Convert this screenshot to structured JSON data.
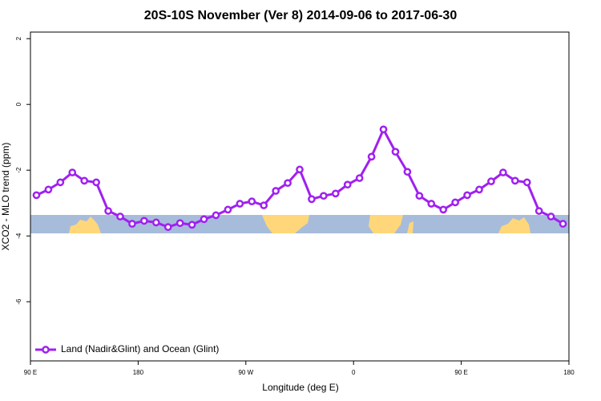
{
  "chart_data": {
    "type": "line",
    "title": "20S-10S November (Ver 8)   2014-09-06 to 2017-06-30",
    "x_label": "Longitude (deg E)",
    "y_label": "XCO2 - MLO trend (ppm)",
    "x": [
      95,
      105,
      115,
      125,
      135,
      145,
      155,
      165,
      175,
      185,
      195,
      205,
      215,
      225,
      235,
      245,
      255,
      265,
      275,
      285,
      295,
      305,
      315,
      325,
      335,
      345,
      355,
      365,
      375,
      385,
      395,
      405,
      415,
      425,
      435,
      445,
      455,
      465,
      475,
      485,
      495,
      505,
      515,
      525,
      535
    ],
    "series": [
      {
        "name": "Land (Nadir&Glint) and Ocean (Glint)",
        "color": "#a020f0",
        "values": [
          -2.76,
          -2.59,
          -2.37,
          -2.07,
          -2.32,
          -2.37,
          -3.24,
          -3.41,
          -3.63,
          -3.54,
          -3.59,
          -3.73,
          -3.61,
          -3.66,
          -3.49,
          -3.37,
          -3.2,
          -3.02,
          -2.95,
          -3.07,
          -2.63,
          -2.39,
          -1.98,
          -2.88,
          -2.78,
          -2.71,
          -2.44,
          -2.24,
          -1.59,
          -0.76,
          -1.44,
          -2.05,
          -2.78,
          -3.02,
          -3.2,
          -2.98,
          -2.76,
          -2.59,
          -2.34,
          -2.07,
          -2.32,
          -2.37,
          -3.24,
          -3.41,
          -3.63
        ]
      }
    ],
    "xlim": [
      90,
      540
    ],
    "xticks": [
      {
        "value": 90,
        "label": "90 E"
      },
      180,
      {
        "value": 270,
        "label": "90 W"
      },
      {
        "value": 360,
        "label": "0"
      },
      {
        "value": 450,
        "label": "90 E"
      },
      {
        "value": 540,
        "label": "180"
      }
    ],
    "ylim": [
      -7.8,
      2.2
    ],
    "yticks": [
      2,
      0,
      -2,
      -4,
      -6
    ],
    "legend": "bottomleft"
  }
}
